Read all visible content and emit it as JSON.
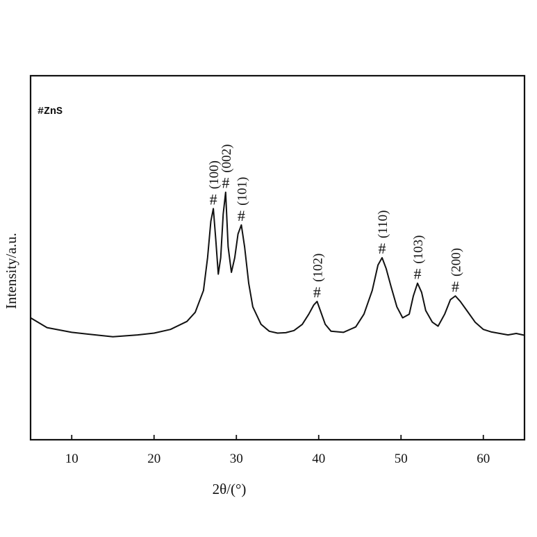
{
  "chart_data": {
    "type": "line",
    "title": "",
    "xlabel": "2θ/(°)",
    "ylabel": "Intensity/a.u.",
    "xlim": [
      5,
      65
    ],
    "ylim": [
      0,
      100
    ],
    "xticks": [
      10,
      20,
      30,
      40,
      50,
      60
    ],
    "yticks": [],
    "grid": false,
    "legend": {
      "text": "#ZnS",
      "placement": "top-left"
    },
    "series": [
      {
        "x": [
          5,
          7,
          10,
          12,
          15,
          18,
          20,
          22,
          24,
          25,
          26,
          26.5,
          26.9,
          27.2,
          27.5,
          27.8,
          28.1,
          28.4,
          28.7,
          29.0,
          29.4,
          29.8,
          30.2,
          30.6,
          31.0,
          31.5,
          32,
          33,
          34,
          35,
          36,
          37,
          38,
          38.8,
          39.4,
          39.8,
          40.2,
          40.8,
          41.5,
          43,
          44.5,
          45.5,
          46.5,
          47.2,
          47.7,
          48.2,
          48.8,
          49.5,
          50.2,
          51.0,
          51.5,
          52.0,
          52.5,
          53.0,
          53.8,
          54.5,
          55.3,
          56.0,
          56.6,
          57.2,
          58.0,
          59.0,
          60.0,
          61.0,
          62.0,
          63.0,
          64.0,
          65.0
        ],
        "y": [
          33.5,
          30.8,
          29.5,
          29,
          28.3,
          28.8,
          29.3,
          30.3,
          32.5,
          35,
          41,
          50,
          60,
          63.5,
          55,
          45.5,
          50,
          62,
          68,
          53,
          46,
          50,
          56.5,
          59,
          53,
          43,
          36.5,
          31.7,
          29.8,
          29.3,
          29.4,
          30,
          31.7,
          34.5,
          37,
          38,
          35.5,
          31.7,
          29.8,
          29.5,
          31,
          34.5,
          41,
          48,
          50,
          47,
          42,
          36.5,
          33.5,
          34.5,
          39.5,
          43,
          40.5,
          35.5,
          32.3,
          31.2,
          34.5,
          38.5,
          39.5,
          38,
          35.5,
          32.3,
          30.3,
          29.6,
          29.2,
          28.8,
          29.2,
          28.7
        ]
      }
    ],
    "annotations": [
      {
        "label": "(100)",
        "x": 27.2,
        "y": 63.5
      },
      {
        "label": "(002)",
        "x": 28.7,
        "y": 68
      },
      {
        "label": "(101)",
        "x": 30.6,
        "y": 59
      },
      {
        "label": "(102)",
        "x": 39.8,
        "y": 38
      },
      {
        "label": "(110)",
        "x": 47.7,
        "y": 50
      },
      {
        "label": "(103)",
        "x": 52.0,
        "y": 43
      },
      {
        "label": "(200)",
        "x": 56.6,
        "y": 39.5
      }
    ],
    "marker_symbol": "#"
  }
}
